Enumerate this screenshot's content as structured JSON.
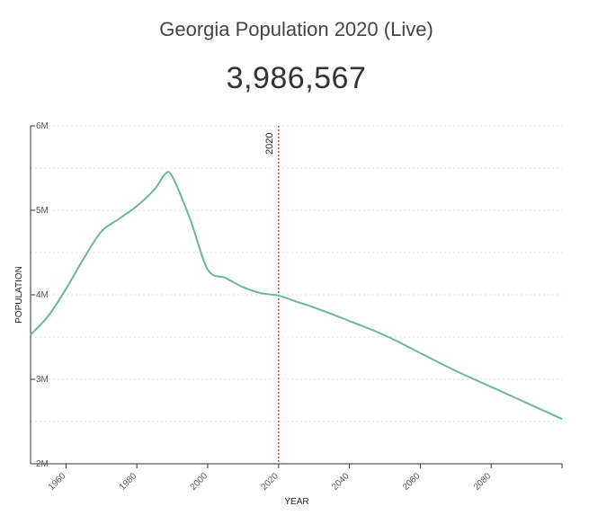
{
  "header": {
    "title": "Georgia Population 2020 (Live)",
    "live_value": "3,986,567"
  },
  "chart_data": {
    "type": "line",
    "title": "Georgia Population 2020 (Live)",
    "xlabel": "YEAR",
    "ylabel": "POPULATION",
    "xlim": [
      1950,
      2100
    ],
    "ylim": [
      2000000,
      6000000
    ],
    "x_ticks": [
      1960,
      1980,
      2000,
      2020,
      2040,
      2060,
      2080
    ],
    "y_ticks": [
      {
        "value": 2000000,
        "label": "2M"
      },
      {
        "value": 3000000,
        "label": "3M"
      },
      {
        "value": 4000000,
        "label": "4M"
      },
      {
        "value": 5000000,
        "label": "5M"
      },
      {
        "value": 6000000,
        "label": "6M"
      }
    ],
    "grid": true,
    "marker": {
      "year": 2020,
      "label": "2020",
      "color": "#e8383d"
    },
    "series": [
      {
        "color": "#6cb5a0",
        "x": [
          1950,
          1955,
          1960,
          1965,
          1970,
          1975,
          1980,
          1985,
          1988,
          1990,
          1995,
          2000,
          2005,
          2010,
          2015,
          2020,
          2025,
          2030,
          2040,
          2050,
          2060,
          2070,
          2080,
          2090,
          2100
        ],
        "y": [
          3527000,
          3750000,
          4070000,
          4430000,
          4750000,
          4900000,
          5050000,
          5250000,
          5430000,
          5400000,
          4900000,
          4300000,
          4200000,
          4090000,
          4020000,
          3990000,
          3920000,
          3850000,
          3690000,
          3520000,
          3310000,
          3100000,
          2910000,
          2720000,
          2530000
        ]
      }
    ]
  }
}
